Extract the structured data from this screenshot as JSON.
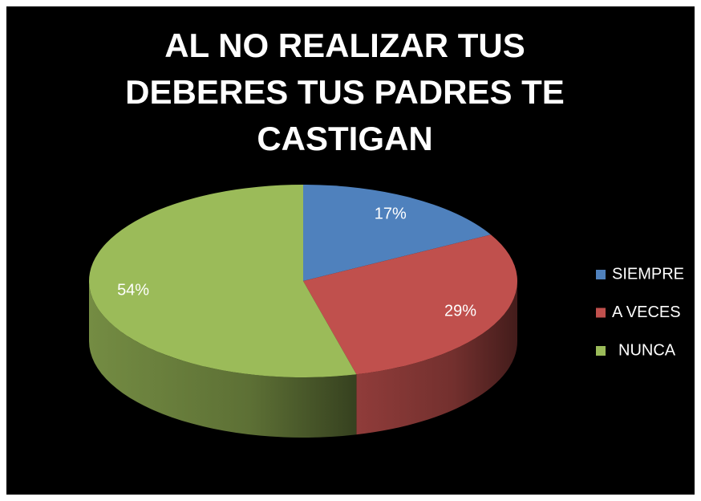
{
  "chart_data": {
    "type": "pie",
    "title": "AL NO REALIZAR TUS DEBERES TUS PADRES TE CASTIGAN",
    "categories": [
      "SIEMPRE",
      "A VECES",
      "NUNCA"
    ],
    "values": [
      17,
      29,
      54
    ],
    "value_labels": [
      "17%",
      "29%",
      "54%"
    ],
    "colors": [
      "#4f81bd",
      "#c0504d",
      "#9bbb59"
    ],
    "legend": "right"
  }
}
